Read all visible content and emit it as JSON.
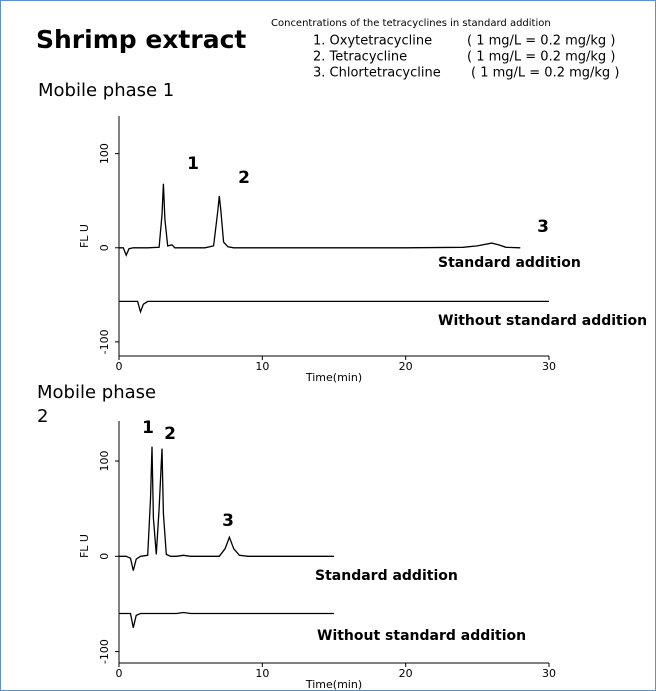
{
  "title": "Shrimp extract",
  "note": "Concentrations of the tetracyclines in standard addition",
  "compounds": [
    {
      "name": "1. Oxytetracycline",
      "conc": "( 1 mg/L = 0.2 mg/kg )"
    },
    {
      "name": "2. Tetracycline",
      "conc": "( 1 mg/L = 0.2 mg/kg )"
    },
    {
      "name": "3. Chlortetracycline",
      "conc": "( 1 mg/L = 0.2 mg/kg )"
    }
  ],
  "chart_data": [
    {
      "type": "line",
      "title": "Mobile phase 1",
      "xlabel": "Time(min)",
      "ylabel": "FL U",
      "xlim": [
        0,
        30
      ],
      "xticks": [
        0,
        10,
        20,
        30
      ],
      "ylim": [
        -115,
        140
      ],
      "yticks": [
        -100,
        0,
        100
      ],
      "annotations": [
        "1",
        "2",
        "3"
      ],
      "x": [
        0,
        0.3,
        0.5,
        0.7,
        1,
        1.3,
        1.5,
        1.7,
        2,
        2.8,
        3.0,
        3.1,
        3.2,
        3.4,
        3.7,
        3.9,
        4.2,
        5,
        6,
        6.6,
        6.9,
        7.0,
        7.1,
        7.3,
        7.6,
        8,
        10,
        15,
        20,
        24,
        25,
        26,
        26.5,
        27,
        28,
        30
      ],
      "series": [
        {
          "name": "Standard addition",
          "color": "#000000",
          "values": [
            0,
            0,
            -8,
            -1,
            0,
            0,
            0,
            0,
            0,
            0.5,
            35,
            68,
            30,
            2,
            3,
            0,
            0,
            0,
            0,
            2,
            40,
            55,
            40,
            6,
            1,
            0,
            0,
            0,
            0,
            0.5,
            2,
            5,
            3,
            0.5,
            0,
            null
          ]
        },
        {
          "name": "Without standard addition",
          "color": "#000000",
          "values": [
            -57,
            -57,
            -57,
            -57,
            -57,
            -57,
            -68,
            -60,
            -57,
            -57,
            -57,
            -57,
            -57,
            -57,
            -57,
            -57,
            -57,
            -57,
            -57,
            -57,
            -57,
            -57,
            -57,
            -57,
            -57,
            -57,
            -57,
            -57,
            -57,
            -57,
            -57,
            -57,
            -57,
            -57,
            -57,
            -57
          ]
        }
      ]
    },
    {
      "type": "line",
      "title": "Mobile phase 2",
      "xlabel": "Time(min)",
      "ylabel": "FL U",
      "xlim": [
        0,
        30
      ],
      "xticks": [
        0,
        10,
        20,
        30
      ],
      "ylim": [
        -112,
        142
      ],
      "yticks": [
        -100,
        0,
        100
      ],
      "annotations": [
        "1",
        "2",
        "3"
      ],
      "x": [
        0,
        0.5,
        0.8,
        1.0,
        1.2,
        1.5,
        2.0,
        2.2,
        2.3,
        2.4,
        2.6,
        2.8,
        3.0,
        3.1,
        3.3,
        3.6,
        4,
        4.5,
        5,
        7,
        7.4,
        7.7,
        8.0,
        8.4,
        9,
        12,
        15
      ],
      "series": [
        {
          "name": "Standard addition",
          "color": "#000000",
          "values": [
            0,
            0,
            -2,
            -15,
            -3,
            0,
            1,
            60,
            115,
            40,
            2,
            50,
            113,
            45,
            2,
            0,
            0,
            1,
            0,
            0,
            8,
            20,
            8,
            1,
            0,
            0,
            0
          ]
        },
        {
          "name": "Without standard addition",
          "color": "#000000",
          "values": [
            -60,
            -60,
            -60,
            -75,
            -62,
            -60,
            -60,
            -60,
            -60,
            -60,
            -60,
            -60,
            -60,
            -60,
            -60,
            -60,
            -60,
            -59,
            -60,
            -60,
            -60,
            -60,
            -60,
            -60,
            -60,
            -60,
            -60
          ]
        }
      ]
    }
  ]
}
